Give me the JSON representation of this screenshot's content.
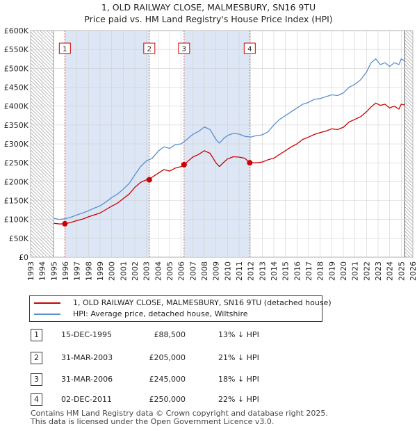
{
  "title": {
    "line1": "1, OLD RAILWAY CLOSE, MALMESBURY, SN16 9TU",
    "line2": "Price paid vs. HM Land Registry's House Price Index (HPI)"
  },
  "legend": {
    "property_label": "1, OLD RAILWAY CLOSE, MALMESBURY, SN16 9TU (detached house)",
    "hpi_label": "HPI: Average price, detached house, Wiltshire"
  },
  "sales": [
    {
      "num": "1",
      "date": "15-DEC-1995",
      "price": "£88,500",
      "hpi": "13% ↓ HPI"
    },
    {
      "num": "2",
      "date": "31-MAR-2003",
      "price": "£205,000",
      "hpi": "21% ↓ HPI"
    },
    {
      "num": "3",
      "date": "31-MAR-2006",
      "price": "£245,000",
      "hpi": "18% ↓ HPI"
    },
    {
      "num": "4",
      "date": "02-DEC-2011",
      "price": "£250,000",
      "hpi": "22% ↓ HPI"
    }
  ],
  "footer": {
    "line1": "Contains HM Land Registry data © Crown copyright and database right 2025.",
    "line2": "This data is licensed under the Open Government Licence v3.0."
  },
  "colors": {
    "property": "#cc0000",
    "hpi": "#5b8fcf",
    "shade": "#dce6f4",
    "grid": "#d0d0d0",
    "hatch": "#aaaaaa",
    "vline": "#e06060"
  },
  "chart_data": {
    "type": "line",
    "title": "1, OLD RAILWAY CLOSE, MALMESBURY, SN16 9TU",
    "subtitle": "Price paid vs. HM Land Registry's House Price Index (HPI)",
    "xlim": [
      1993,
      2026
    ],
    "ylim": [
      0,
      600000
    ],
    "x_ticks": [
      1993,
      1994,
      1995,
      1996,
      1997,
      1998,
      1999,
      2000,
      2001,
      2002,
      2003,
      2004,
      2005,
      2006,
      2007,
      2008,
      2009,
      2010,
      2011,
      2012,
      2013,
      2014,
      2015,
      2016,
      2017,
      2018,
      2019,
      2020,
      2021,
      2022,
      2023,
      2024,
      2025,
      2026
    ],
    "y_ticks": [
      0,
      50000,
      100000,
      150000,
      200000,
      250000,
      300000,
      350000,
      400000,
      450000,
      500000,
      550000,
      600000
    ],
    "y_tick_labels": [
      "£0",
      "£50K",
      "£100K",
      "£150K",
      "£200K",
      "£250K",
      "£300K",
      "£350K",
      "£400K",
      "£450K",
      "£500K",
      "£550K",
      "£600K"
    ],
    "data_start": 1995.0,
    "data_end": 2025.3,
    "shaded_ranges": [
      [
        1995.96,
        2003.25
      ],
      [
        2006.25,
        2011.92
      ]
    ],
    "sale_markers": [
      {
        "label": "1",
        "x": 1995.96,
        "y": 88500
      },
      {
        "label": "2",
        "x": 2003.25,
        "y": 205000
      },
      {
        "label": "3",
        "x": 2006.25,
        "y": 245000
      },
      {
        "label": "4",
        "x": 2011.92,
        "y": 250000
      }
    ],
    "series": [
      {
        "name": "HPI: Average price, detached house, Wiltshire",
        "x": [
          1995.0,
          1995.5,
          1996.0,
          1996.5,
          1997.0,
          1997.5,
          1998.0,
          1998.5,
          1999.0,
          1999.5,
          2000.0,
          2000.5,
          2001.0,
          2001.5,
          2002.0,
          2002.5,
          2003.0,
          2003.5,
          2004.0,
          2004.5,
          2005.0,
          2005.5,
          2006.0,
          2006.5,
          2007.0,
          2007.5,
          2008.0,
          2008.5,
          2009.0,
          2009.3,
          2009.7,
          2010.0,
          2010.5,
          2011.0,
          2011.5,
          2012.0,
          2012.5,
          2013.0,
          2013.5,
          2014.0,
          2014.5,
          2015.0,
          2015.5,
          2016.0,
          2016.5,
          2017.0,
          2017.5,
          2018.0,
          2018.5,
          2019.0,
          2019.5,
          2020.0,
          2020.5,
          2021.0,
          2021.5,
          2022.0,
          2022.4,
          2022.8,
          2023.2,
          2023.6,
          2024.0,
          2024.4,
          2024.8,
          2025.0,
          2025.3
        ],
        "values": [
          103000,
          100000,
          102000,
          106000,
          112000,
          117000,
          123000,
          130000,
          136000,
          146000,
          158000,
          167000,
          180000,
          195000,
          218000,
          240000,
          255000,
          262000,
          280000,
          292000,
          288000,
          298000,
          300000,
          312000,
          325000,
          333000,
          345000,
          338000,
          312000,
          302000,
          315000,
          322000,
          328000,
          326000,
          320000,
          318000,
          322000,
          324000,
          332000,
          350000,
          365000,
          375000,
          385000,
          395000,
          405000,
          410000,
          418000,
          420000,
          425000,
          430000,
          428000,
          435000,
          450000,
          458000,
          470000,
          490000,
          515000,
          525000,
          510000,
          515000,
          505000,
          515000,
          510000,
          525000,
          520000
        ]
      },
      {
        "name": "1, OLD RAILWAY CLOSE, MALMESBURY, SN16 9TU (detached house)",
        "x": [
          1995.0,
          1995.5,
          1995.96,
          1996.5,
          1997.0,
          1997.5,
          1998.0,
          1998.5,
          1999.0,
          1999.5,
          2000.0,
          2000.5,
          2001.0,
          2001.5,
          2002.0,
          2002.5,
          2003.0,
          2003.25,
          2003.5,
          2004.0,
          2004.5,
          2005.0,
          2005.5,
          2006.0,
          2006.25,
          2006.5,
          2007.0,
          2007.5,
          2008.0,
          2008.5,
          2009.0,
          2009.3,
          2009.7,
          2010.0,
          2010.5,
          2011.0,
          2011.5,
          2011.92,
          2012.5,
          2013.0,
          2013.5,
          2014.0,
          2014.5,
          2015.0,
          2015.5,
          2016.0,
          2016.5,
          2017.0,
          2017.5,
          2018.0,
          2018.5,
          2019.0,
          2019.5,
          2020.0,
          2020.5,
          2021.0,
          2021.5,
          2022.0,
          2022.4,
          2022.8,
          2023.2,
          2023.6,
          2024.0,
          2024.4,
          2024.8,
          2025.0,
          2025.3
        ],
        "values": [
          90000,
          88000,
          88500,
          92000,
          97000,
          101000,
          107000,
          112000,
          117000,
          126000,
          135000,
          143000,
          155000,
          167000,
          185000,
          198000,
          205000,
          205000,
          212000,
          222000,
          232000,
          228000,
          236000,
          240000,
          245000,
          252000,
          265000,
          272000,
          282000,
          275000,
          250000,
          240000,
          252000,
          260000,
          266000,
          265000,
          262000,
          250000,
          250000,
          252000,
          258000,
          262000,
          272000,
          282000,
          292000,
          300000,
          312000,
          318000,
          325000,
          330000,
          334000,
          340000,
          338000,
          344000,
          358000,
          365000,
          372000,
          385000,
          398000,
          408000,
          402000,
          405000,
          395000,
          400000,
          392000,
          405000,
          403000
        ]
      }
    ]
  }
}
